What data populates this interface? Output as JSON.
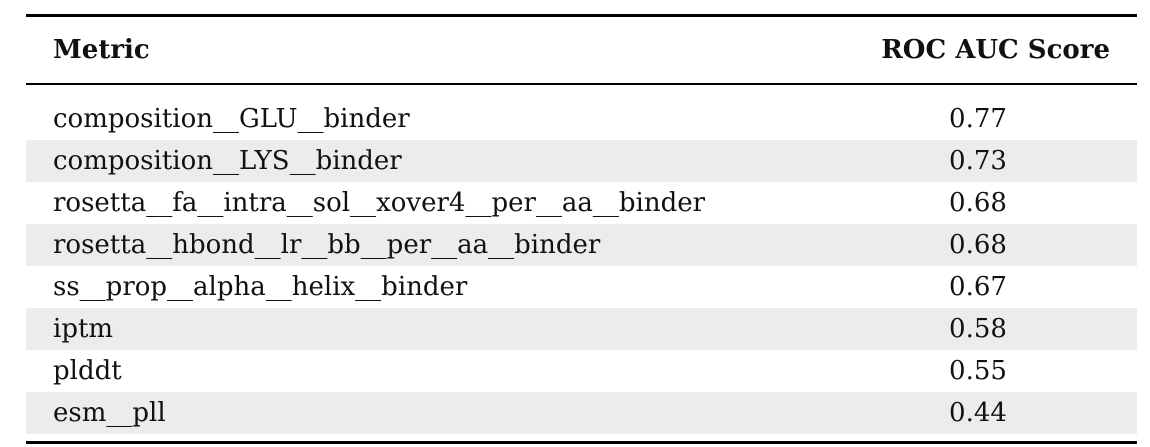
{
  "table": {
    "headers": {
      "metric": "Metric",
      "score": "ROC AUC Score"
    },
    "rows": [
      {
        "metric": "composition__GLU__binder",
        "score": "0.77"
      },
      {
        "metric": "composition__LYS__binder",
        "score": "0.73"
      },
      {
        "metric": "rosetta__fa__intra__sol__xover4__per__aa__binder",
        "score": "0.68"
      },
      {
        "metric": "rosetta__hbond__lr__bb__per__aa__binder",
        "score": "0.68"
      },
      {
        "metric": "ss__prop__alpha__helix__binder",
        "score": "0.67"
      },
      {
        "metric": "iptm",
        "score": "0.58"
      },
      {
        "metric": "plddt",
        "score": "0.55"
      },
      {
        "metric": "esm__pll",
        "score": "0.44"
      }
    ],
    "shaded_row_color": "#ececec"
  }
}
